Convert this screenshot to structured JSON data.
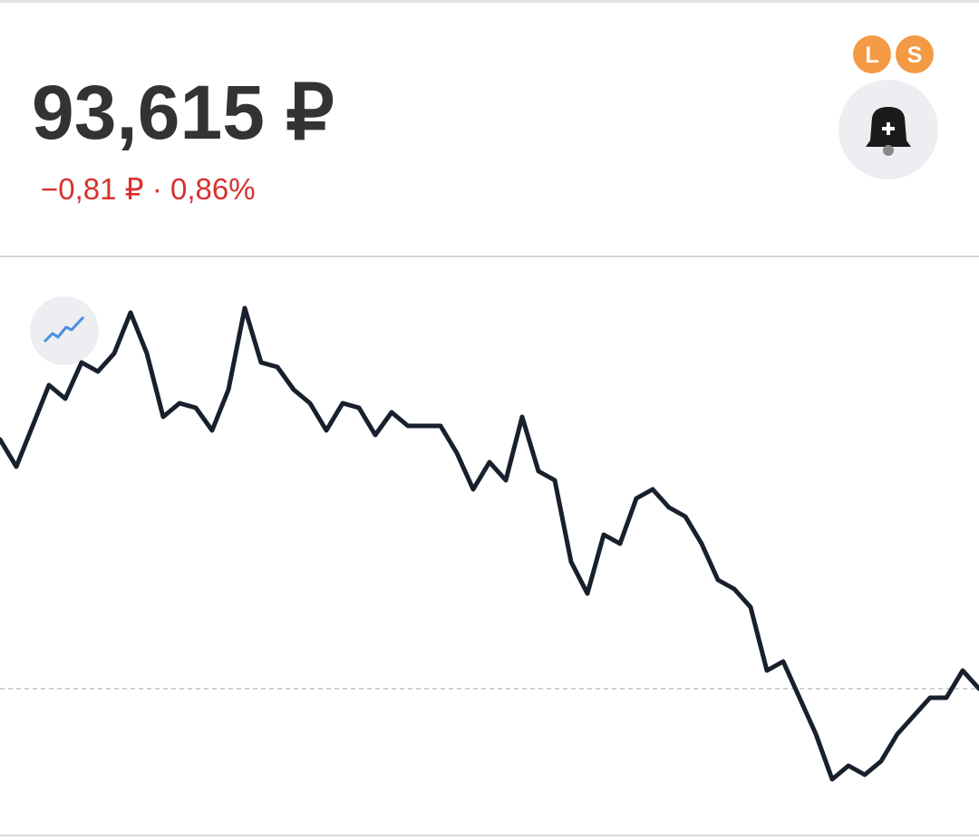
{
  "header": {
    "price": "93,615 ₽",
    "change": "−0,81 ₽ · 0,86%",
    "badges": [
      "L",
      "S"
    ]
  },
  "chart_data": {
    "type": "line",
    "color": "#17202c",
    "ylim": [
      0,
      120
    ],
    "reference_line": 32,
    "values": [
      87,
      81,
      90,
      99,
      96,
      104,
      102,
      106,
      115,
      106,
      92,
      95,
      94,
      89,
      98,
      116,
      104,
      103,
      98,
      95,
      89,
      95,
      94,
      88,
      93,
      90,
      90,
      90,
      84,
      76,
      82,
      78,
      92,
      80,
      78,
      60,
      53,
      66,
      64,
      74,
      76,
      72,
      70,
      64,
      56,
      54,
      50,
      36,
      38,
      30,
      22,
      12,
      15,
      13,
      16,
      22,
      26,
      30,
      30,
      36,
      32
    ]
  }
}
